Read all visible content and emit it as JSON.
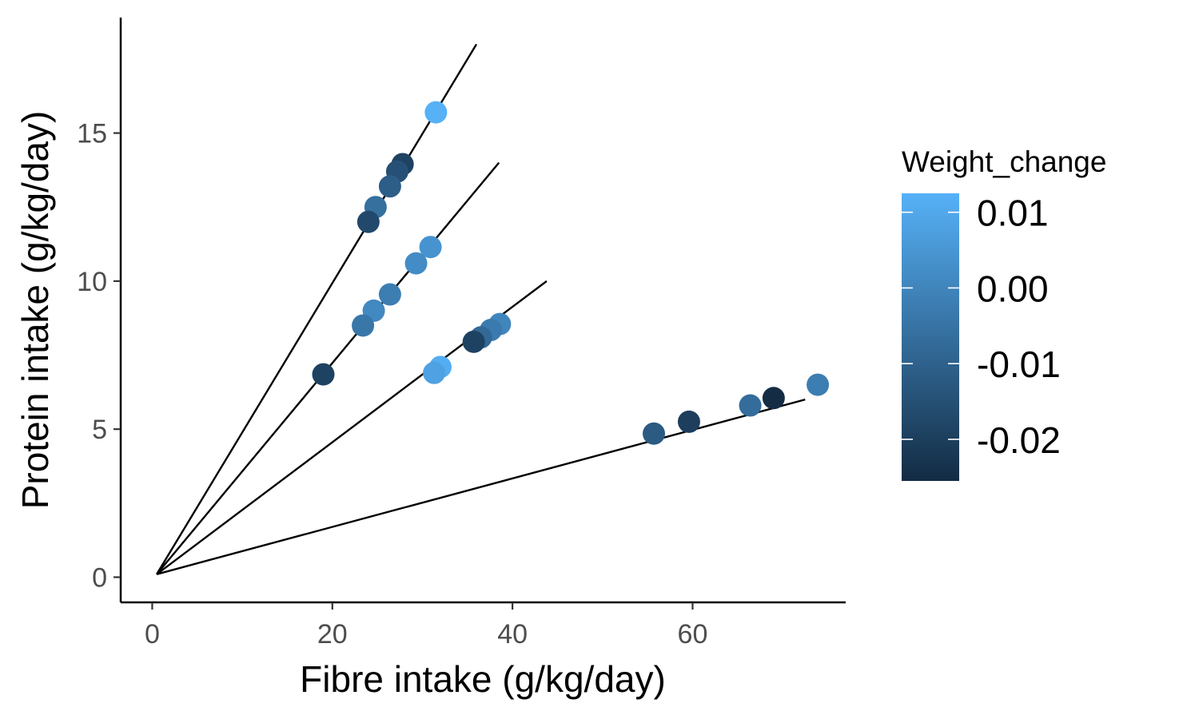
{
  "chart_data": {
    "type": "scatter",
    "title": "",
    "xlabel": "Fibre intake (g/kg/day)",
    "ylabel": "Protein intake (g/kg/day)",
    "xlim": [
      -3.5,
      77
    ],
    "ylim": [
      -0.85,
      18.9
    ],
    "xticks": [
      0,
      20,
      40,
      60
    ],
    "yticks": [
      0,
      5,
      10,
      15
    ],
    "grid": false,
    "legend": {
      "title": "Weight_change",
      "position": "right",
      "range": [
        -0.0255,
        0.0125
      ],
      "ticks": [
        {
          "value": 0.01,
          "label": "0.01"
        },
        {
          "value": 0.0,
          "label": "0.00"
        },
        {
          "value": -0.01,
          "label": "-0.01"
        },
        {
          "value": -0.02,
          "label": "-0.02"
        }
      ],
      "low_color": "#132b43",
      "high_color": "#56b1f7"
    },
    "rails": [
      {
        "x": [
          0.5,
          36.0
        ],
        "y": [
          0.1,
          18.0
        ]
      },
      {
        "x": [
          0.5,
          38.5
        ],
        "y": [
          0.1,
          14.0
        ]
      },
      {
        "x": [
          0.5,
          43.8
        ],
        "y": [
          0.1,
          10.0
        ]
      },
      {
        "x": [
          0.5,
          72.5
        ],
        "y": [
          0.1,
          6.0
        ]
      }
    ],
    "points": [
      {
        "x": 31.5,
        "y": 15.7,
        "w": 0.0125
      },
      {
        "x": 27.8,
        "y": 13.95,
        "w": -0.019
      },
      {
        "x": 27.2,
        "y": 13.7,
        "w": -0.015
      },
      {
        "x": 26.4,
        "y": 13.2,
        "w": -0.011
      },
      {
        "x": 24.8,
        "y": 12.5,
        "w": -0.006
      },
      {
        "x": 24.0,
        "y": 12.0,
        "w": -0.017
      },
      {
        "x": 30.9,
        "y": 11.15,
        "w": 0.004
      },
      {
        "x": 29.3,
        "y": 10.6,
        "w": 0.002
      },
      {
        "x": 26.4,
        "y": 9.55,
        "w": -0.002
      },
      {
        "x": 24.6,
        "y": 9.0,
        "w": 0.001
      },
      {
        "x": 23.4,
        "y": 8.5,
        "w": -0.004
      },
      {
        "x": 19.0,
        "y": 6.85,
        "w": -0.019
      },
      {
        "x": 38.6,
        "y": 8.55,
        "w": 0.0
      },
      {
        "x": 37.6,
        "y": 8.35,
        "w": -0.003
      },
      {
        "x": 36.5,
        "y": 8.1,
        "w": -0.008
      },
      {
        "x": 35.7,
        "y": 7.95,
        "w": -0.019
      },
      {
        "x": 32.0,
        "y": 7.1,
        "w": 0.0115
      },
      {
        "x": 31.3,
        "y": 6.9,
        "w": 0.008
      },
      {
        "x": 73.9,
        "y": 6.5,
        "w": -0.002
      },
      {
        "x": 69.0,
        "y": 6.05,
        "w": -0.025
      },
      {
        "x": 66.4,
        "y": 5.8,
        "w": -0.007
      },
      {
        "x": 59.6,
        "y": 5.25,
        "w": -0.02
      },
      {
        "x": 55.7,
        "y": 4.85,
        "w": -0.012
      }
    ]
  }
}
